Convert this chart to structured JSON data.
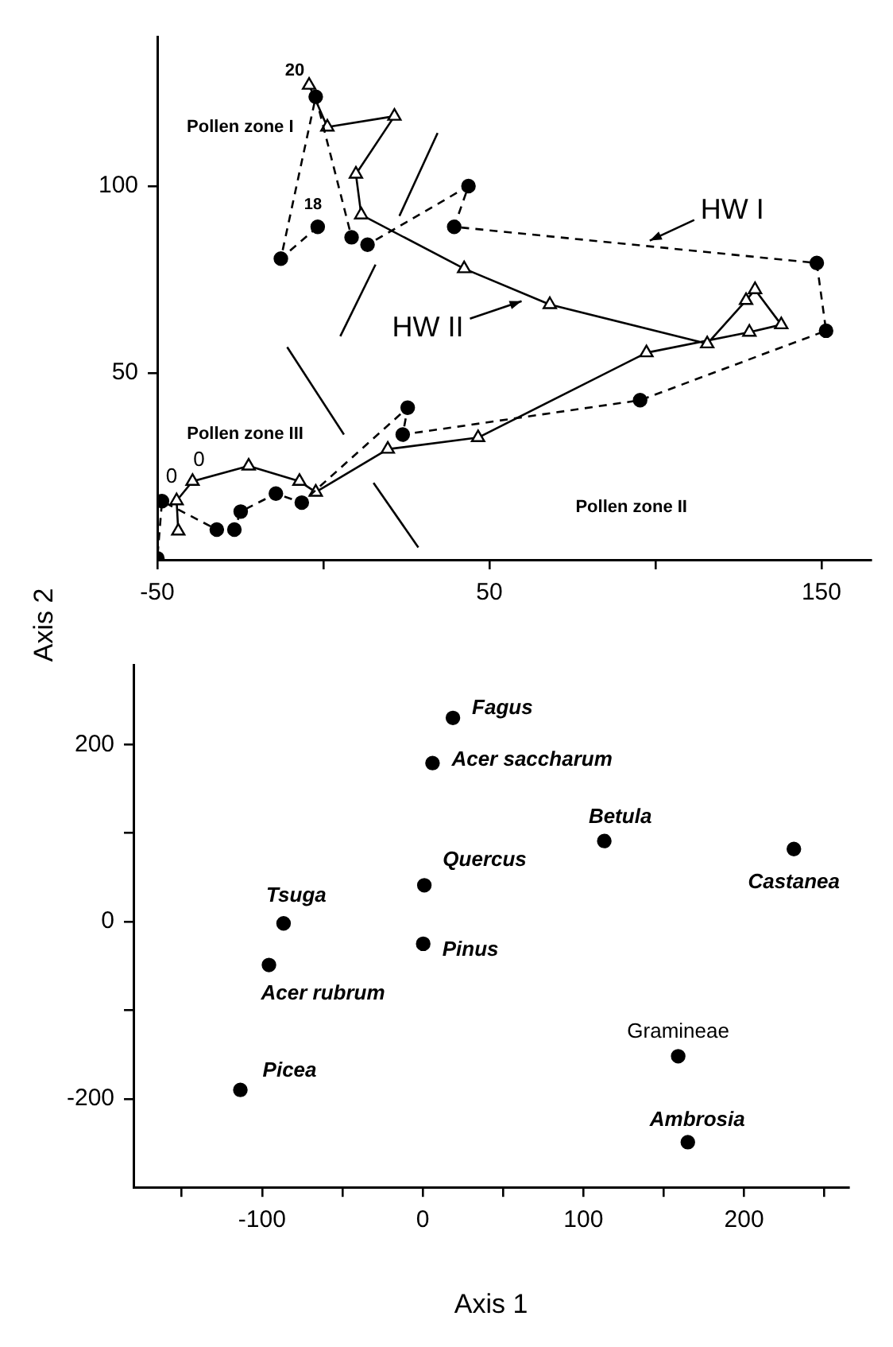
{
  "chart_data": [
    {
      "type": "line",
      "ylabel": "Axis 2",
      "xlim": [
        -50,
        165
      ],
      "ylim": [
        0,
        140
      ],
      "xticks": [
        -50,
        {
          "value": 0,
          "label": null
        },
        50,
        {
          "value": 100,
          "label": null
        },
        150
      ],
      "yticks": [
        50,
        100
      ],
      "series": [
        {
          "color": "#000000",
          "marker": "circle",
          "line_style": "dashed",
          "x": [
            -1.7,
            -12.8,
            -2.3,
            8.5,
            13.3,
            43.7,
            39.4,
            148.6,
            151.4,
            95.4,
            23.9,
            25.4,
            -6.5,
            -14.3,
            -24.9,
            -26.8,
            -32.1,
            -48.6,
            -50
          ],
          "values": [
            89.1,
            80.6,
            123.9,
            86.3,
            84.3,
            100,
            89.1,
            79.4,
            61.3,
            42.7,
            33.5,
            40.7,
            15.3,
            17.7,
            12.9,
            8.1,
            8.1,
            15.7,
            0.4
          ]
        },
        {
          "color": "#000000",
          "marker": "triangle",
          "line_style": "solid",
          "x": [
            -4.3,
            1.2,
            21.4,
            9.8,
            11.4,
            42.4,
            68.2,
            115.6,
            127.3,
            130,
            137.9,
            128.3,
            97.3,
            46.6,
            19.4,
            -2.3,
            -7.2,
            -22.5,
            -39.4,
            -44.2,
            -43.7
          ],
          "values": [
            127,
            115.8,
            118.7,
            103.2,
            92.3,
            77.9,
            68.3,
            57.8,
            69.4,
            72.3,
            62.9,
            60.9,
            55.4,
            32.7,
            29.6,
            18.1,
            21,
            25.1,
            21,
            15.8,
            7.7
          ]
        },
        {
          "type": "line",
          "color": "#000000",
          "marker": "none",
          "line_style": "solid",
          "x": [
            34.4,
            22.9
          ],
          "values": [
            114.2,
            92
          ]
        },
        {
          "type": "line",
          "color": "#000000",
          "marker": "none",
          "line_style": "solid",
          "x": [
            15.7,
            5.1
          ],
          "values": [
            79,
            59.8
          ]
        },
        {
          "type": "line",
          "color": "#000000",
          "marker": "none",
          "line_style": "solid",
          "x": [
            -10.9,
            6.2
          ],
          "values": [
            56.9,
            33.5
          ]
        },
        {
          "type": "line",
          "color": "#000000",
          "marker": "none",
          "line_style": "solid",
          "x": [
            15.1,
            28.6
          ],
          "values": [
            20.6,
            3.3
          ]
        }
      ],
      "annotations": [
        "Pollen zone I",
        "Pollen zone II",
        "Pollen zone III",
        {
          "text": "20",
          "x": -4.3,
          "y": 127
        },
        {
          "text": "18",
          "x": -1.7,
          "y": 89.1
        },
        {
          "text": "0",
          "x": -48.6,
          "y": 15.7
        },
        {
          "text": "0",
          "x": -39.4,
          "y": 21
        },
        {
          "text": "HW I",
          "x": 98.3,
          "y": 85.4
        },
        {
          "text": "HW II",
          "x": 59.7,
          "y": 69.2
        }
      ]
    },
    {
      "type": "scatter",
      "xlabel": "Axis 1",
      "xlim": [
        -180,
        265
      ],
      "ylim": [
        -300,
        290
      ],
      "xticks": [
        {
          "value": -150,
          "label": null
        },
        -100,
        {
          "value": -50,
          "label": null
        },
        0,
        {
          "value": 50,
          "label": null
        },
        100,
        {
          "value": 150,
          "label": null
        },
        200,
        {
          "value": 250,
          "label": null
        }
      ],
      "yticks": [
        -200,
        {
          "value": -100,
          "label": null
        },
        0,
        {
          "value": 100,
          "label": null
        },
        200
      ],
      "marker": "circle",
      "series": [
        {
          "color": "#000000",
          "x": [
            18.8,
            6.1,
            113,
            231,
            1,
            -86.6,
            0.3,
            -95.7,
            159,
            -113.5,
            165
          ],
          "values": [
            230,
            179,
            91,
            82,
            41,
            -2,
            -25,
            -49,
            -152,
            -190,
            -249
          ]
        }
      ],
      "annotations": [
        {
          "text": "Fagus",
          "x": 18.8,
          "y": 230
        },
        {
          "text": "Acer saccharum",
          "x": 6.1,
          "y": 179
        },
        {
          "text": "Betula",
          "x": 113,
          "y": 91
        },
        {
          "text": "Castanea",
          "x": 231,
          "y": 82
        },
        {
          "text": "Quercus",
          "x": 1,
          "y": 41
        },
        {
          "text": "Tsuga",
          "x": -86.6,
          "y": -2
        },
        {
          "text": "Pinus",
          "x": 0.3,
          "y": -25
        },
        {
          "text": "Acer rubrum",
          "x": -95.7,
          "y": -49
        },
        {
          "text": "Gramineae",
          "x": 159,
          "y": -152
        },
        {
          "text": "Picea",
          "x": -113.5,
          "y": -190
        },
        {
          "text": "Ambrosia",
          "x": 165,
          "y": -249
        }
      ]
    }
  ]
}
